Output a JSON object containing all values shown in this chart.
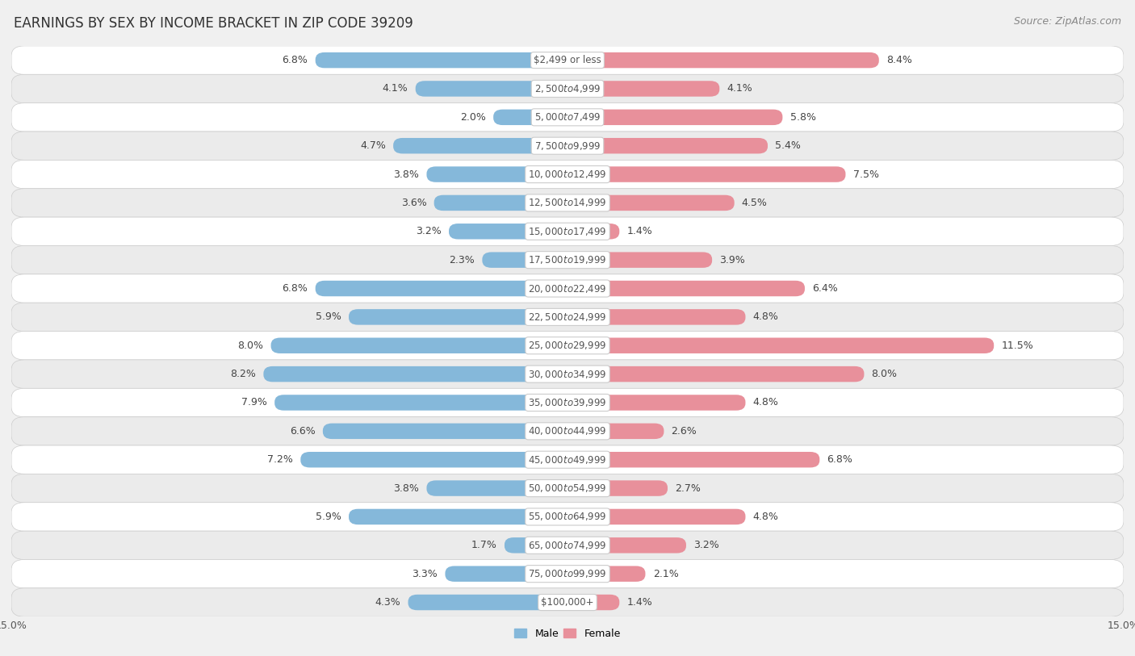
{
  "title": "EARNINGS BY SEX BY INCOME BRACKET IN ZIP CODE 39209",
  "source": "Source: ZipAtlas.com",
  "categories": [
    "$2,499 or less",
    "$2,500 to $4,999",
    "$5,000 to $7,499",
    "$7,500 to $9,999",
    "$10,000 to $12,499",
    "$12,500 to $14,999",
    "$15,000 to $17,499",
    "$17,500 to $19,999",
    "$20,000 to $22,499",
    "$22,500 to $24,999",
    "$25,000 to $29,999",
    "$30,000 to $34,999",
    "$35,000 to $39,999",
    "$40,000 to $44,999",
    "$45,000 to $49,999",
    "$50,000 to $54,999",
    "$55,000 to $64,999",
    "$65,000 to $74,999",
    "$75,000 to $99,999",
    "$100,000+"
  ],
  "male_values": [
    6.8,
    4.1,
    2.0,
    4.7,
    3.8,
    3.6,
    3.2,
    2.3,
    6.8,
    5.9,
    8.0,
    8.2,
    7.9,
    6.6,
    7.2,
    3.8,
    5.9,
    1.7,
    3.3,
    4.3
  ],
  "female_values": [
    8.4,
    4.1,
    5.8,
    5.4,
    7.5,
    4.5,
    1.4,
    3.9,
    6.4,
    4.8,
    11.5,
    8.0,
    4.8,
    2.6,
    6.8,
    2.7,
    4.8,
    3.2,
    2.1,
    1.4
  ],
  "male_color": "#85b8da",
  "female_color": "#e8909b",
  "bg_color": "#f0f0f0",
  "row_light": "#ffffff",
  "row_dark": "#ebebeb",
  "xlim": 15.0,
  "title_fontsize": 12,
  "source_fontsize": 9,
  "label_fontsize": 9,
  "category_fontsize": 8.5,
  "legend_fontsize": 9,
  "axis_label_fontsize": 9
}
